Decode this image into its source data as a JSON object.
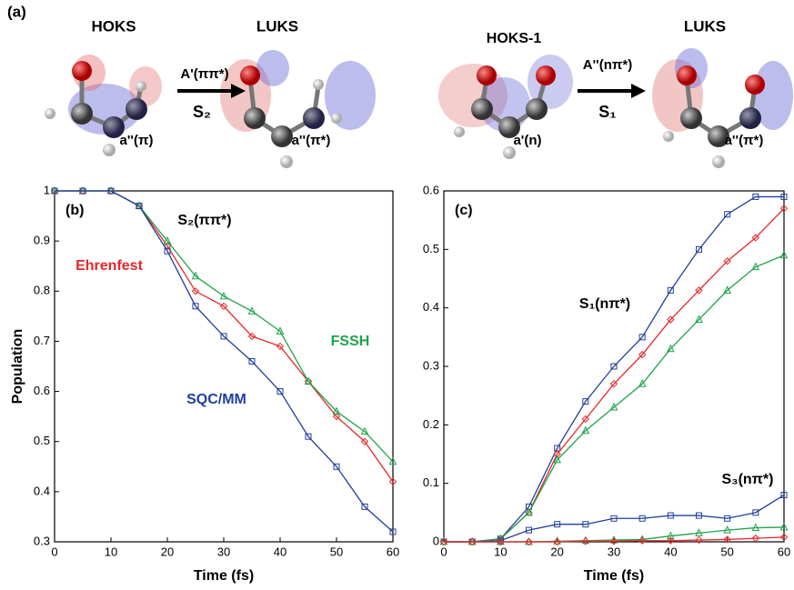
{
  "panel_a": {
    "label": "(a)",
    "texts": [
      "HOKS",
      "LUKS",
      "A'(ππ*)",
      "S₂",
      "a''(π)",
      "a''(π*)",
      "HOKS-1",
      "LUKS",
      "A''(nπ*)",
      "S₁",
      "a'(n)",
      "a''(π*)"
    ]
  },
  "chart_data": [
    {
      "type": "line",
      "panel_label": "(b)",
      "x_label": "Time (fs)",
      "y_label": "Population",
      "x": [
        0,
        5,
        10,
        15,
        20,
        25,
        30,
        35,
        40,
        45,
        50,
        55,
        60
      ],
      "series": [
        {
          "name": "Ehrenfest",
          "color": "#e8262a",
          "marker": "diamond",
          "values": [
            1,
            1,
            1,
            0.97,
            0.89,
            0.8,
            0.77,
            0.71,
            0.69,
            0.62,
            0.55,
            0.5,
            0.42
          ]
        },
        {
          "name": "FSSH",
          "color": "#1fa34a",
          "marker": "triangle",
          "values": [
            1,
            1,
            1,
            0.97,
            0.9,
            0.83,
            0.79,
            0.76,
            0.72,
            0.62,
            0.56,
            0.52,
            0.46
          ]
        },
        {
          "name": "SQC/MM",
          "color": "#21409a",
          "marker": "square",
          "values": [
            1,
            1,
            1,
            0.97,
            0.88,
            0.77,
            0.71,
            0.66,
            0.6,
            0.51,
            0.45,
            0.37,
            0.32
          ]
        }
      ],
      "annotations": [
        "S₂(ππ*)"
      ],
      "xlim": [
        0,
        60
      ],
      "xticks": [
        0,
        10,
        20,
        30,
        40,
        50,
        60
      ],
      "ylim": [
        0.3,
        1
      ],
      "yticks": [
        0.3,
        0.4,
        0.5,
        0.6,
        0.7,
        0.8,
        0.9,
        1
      ]
    },
    {
      "type": "line",
      "panel_label": "(c)",
      "x_label": "Time (fs)",
      "x": [
        0,
        5,
        10,
        15,
        20,
        25,
        30,
        35,
        40,
        45,
        50,
        55,
        60
      ],
      "series": [
        {
          "color": "#21409a",
          "marker": "square",
          "values": [
            0,
            0,
            0.005,
            0.06,
            0.16,
            0.24,
            0.3,
            0.35,
            0.43,
            0.5,
            0.56,
            0.59,
            0.59
          ]
        },
        {
          "color": "#e8262a",
          "marker": "diamond",
          "values": [
            0,
            0,
            0.005,
            0.05,
            0.15,
            0.21,
            0.27,
            0.32,
            0.38,
            0.43,
            0.48,
            0.52,
            0.57
          ]
        },
        {
          "color": "#1fa34a",
          "marker": "triangle",
          "values": [
            0,
            0,
            0.005,
            0.05,
            0.14,
            0.19,
            0.23,
            0.27,
            0.33,
            0.38,
            0.43,
            0.47,
            0.49
          ]
        },
        {
          "color": "#21409a",
          "marker": "square",
          "values": [
            0,
            0,
            0.002,
            0.02,
            0.03,
            0.03,
            0.04,
            0.04,
            0.045,
            0.045,
            0.04,
            0.05,
            0.08
          ]
        },
        {
          "color": "#1fa34a",
          "marker": "triangle",
          "values": [
            0,
            0,
            0,
            0,
            0.001,
            0.002,
            0.003,
            0.004,
            0.01,
            0.015,
            0.02,
            0.024,
            0.025
          ]
        },
        {
          "color": "#e8262a",
          "marker": "diamond",
          "values": [
            0,
            0,
            0,
            0,
            0,
            0.001,
            0.001,
            0.002,
            0.002,
            0.003,
            0.004,
            0.006,
            0.008
          ]
        }
      ],
      "annotations": [
        "S₁(nπ*)",
        "S₃(nπ*)"
      ],
      "xlim": [
        0,
        60
      ],
      "xticks": [
        0,
        10,
        20,
        30,
        40,
        50,
        60
      ],
      "ylim": [
        0,
        0.6
      ],
      "yticks": [
        0,
        0.1,
        0.2,
        0.3,
        0.4,
        0.5,
        0.6
      ]
    }
  ]
}
